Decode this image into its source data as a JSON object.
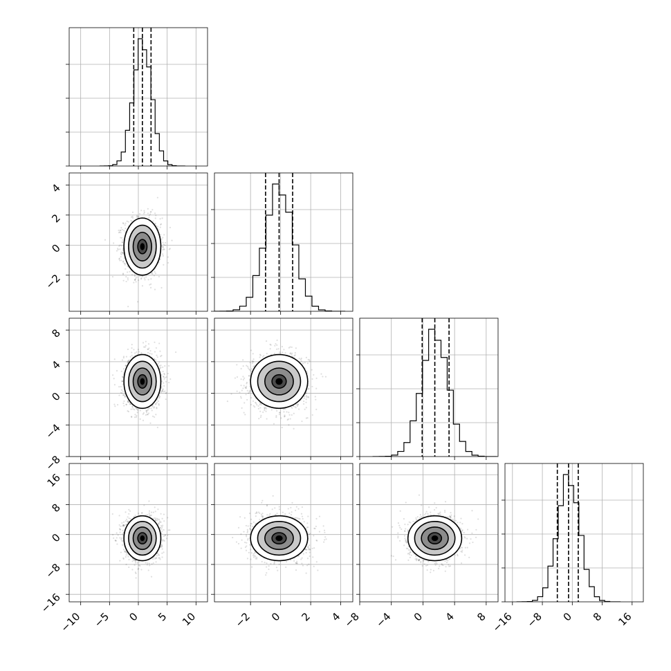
{
  "chart_data": {
    "type": "corner",
    "grid": true,
    "variables": [
      {
        "range": [
          -12,
          12
        ],
        "mean": 0.7,
        "sigma": 1.6,
        "ticks": [
          -10,
          -5,
          0,
          5,
          10
        ],
        "tick_labels": [
          "−10",
          "−5",
          "0",
          "5",
          "10"
        ],
        "quantiles": [
          -0.8,
          0.7,
          2.2
        ]
      },
      {
        "range": [
          -4.4,
          4.8
        ],
        "mean": -0.1,
        "sigma": 0.95,
        "ticks": [
          -2,
          0,
          2,
          4
        ],
        "tick_labels": [
          "−2",
          "0",
          "2",
          "4"
        ],
        "quantiles": [
          -1.0,
          -0.1,
          0.8
        ]
      },
      {
        "range": [
          -8,
          9.5
        ],
        "mean": 1.5,
        "sigma": 1.7,
        "ticks": [
          -8,
          -4,
          0,
          4,
          8
        ],
        "tick_labels": [
          "−8",
          "−4",
          "0",
          "4",
          "8"
        ],
        "quantiles": [
          -0.1,
          1.5,
          3.3
        ]
      },
      {
        "range": [
          -18,
          19
        ],
        "mean": -1.0,
        "sigma": 3.0,
        "ticks": [
          -16,
          -8,
          0,
          8,
          16
        ],
        "tick_labels": [
          "−16",
          "−8",
          "0",
          "8",
          "16"
        ],
        "quantiles": [
          -4.0,
          -1.0,
          1.6
        ]
      }
    ],
    "hist_bins": 20,
    "contour_levels_sigma": [
      0.5,
      1.0,
      1.5,
      2.0
    ],
    "samples_shown": 1500
  }
}
